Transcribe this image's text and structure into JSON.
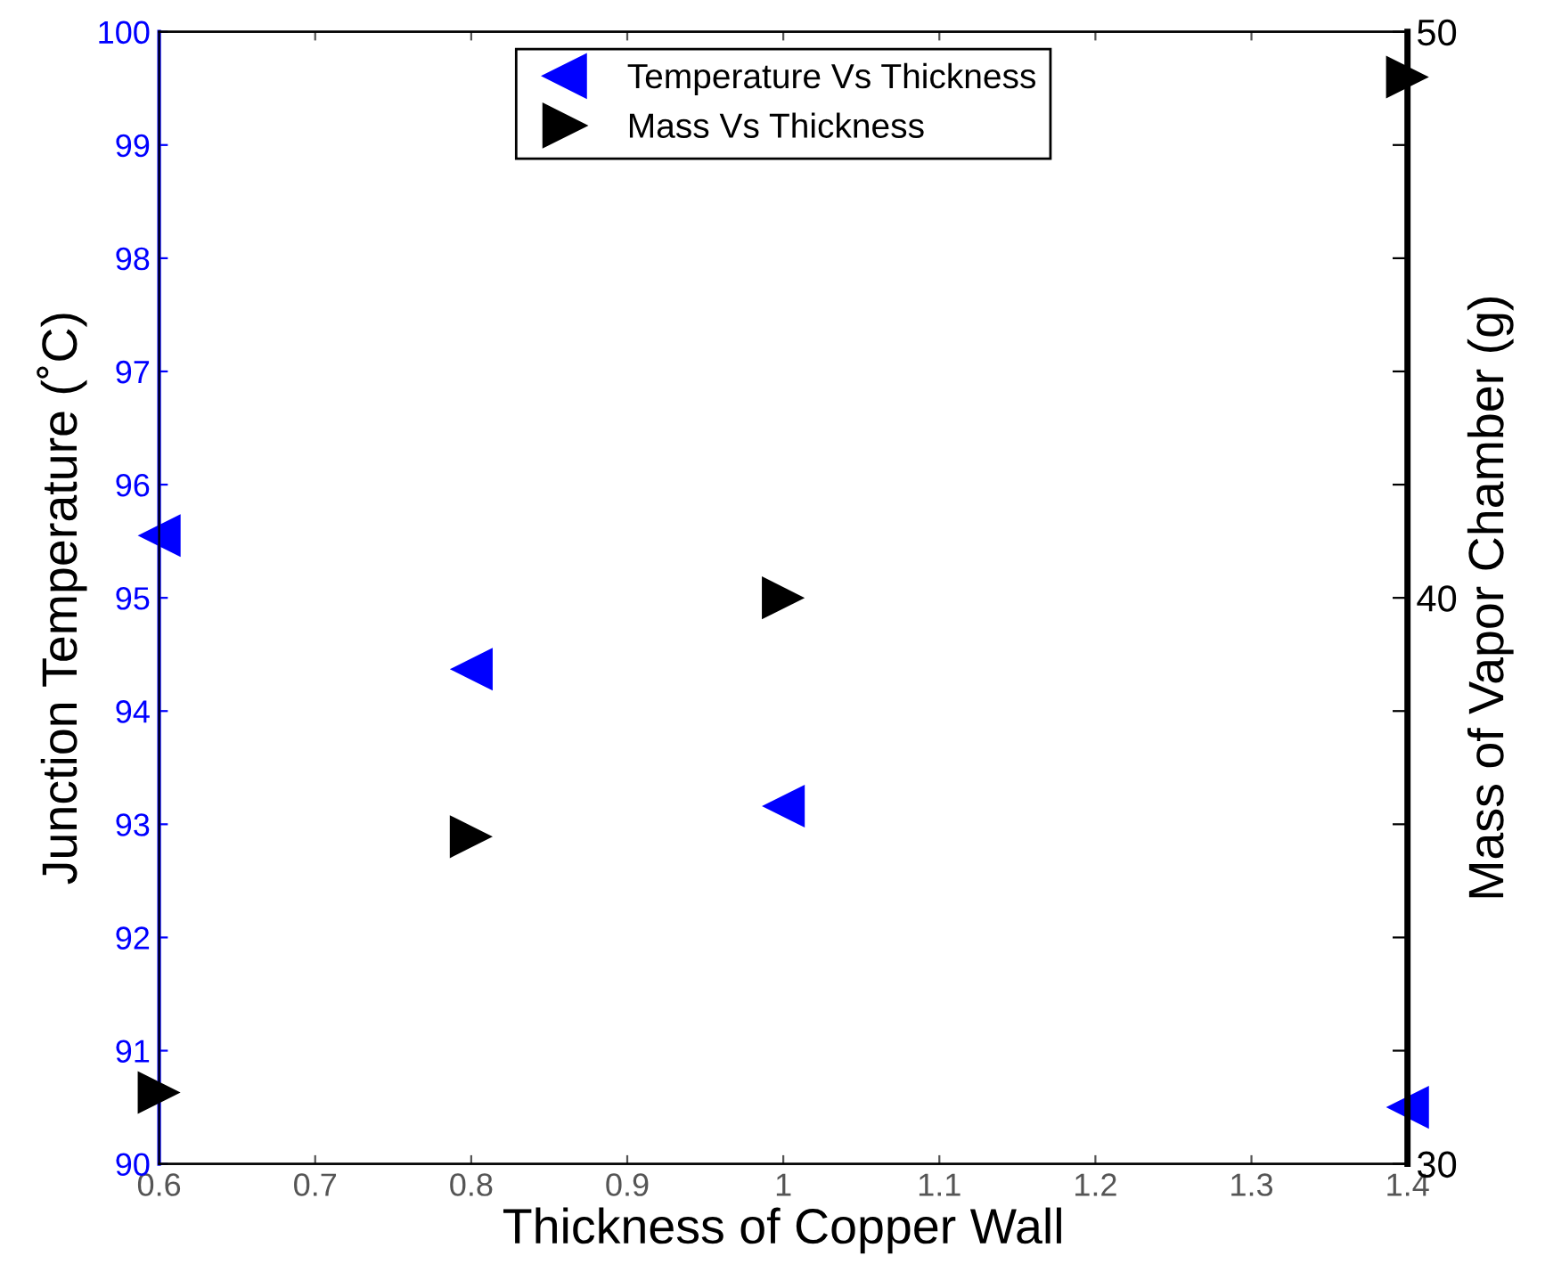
{
  "chart_data": {
    "type": "scatter",
    "xlabel": "Thickness of Copper Wall",
    "ylabel": "Junction Temperature (˚C)",
    "y2label": "Mass of Vapor Chamber (g)",
    "x": [
      0.6,
      0.8,
      1.0,
      1.4
    ],
    "series": [
      {
        "name": "Temperature Vs Thickness",
        "color": "#0000ff",
        "values": [
          95.55,
          94.37,
          93.16,
          90.5
        ],
        "axis": "y"
      },
      {
        "name": "Mass Vs Thickness",
        "color": "#000000",
        "values": [
          31.26,
          35.78,
          40.0,
          49.2
        ],
        "axis": "y2"
      }
    ],
    "xlim": [
      0.6,
      1.4
    ],
    "xticks": [
      0.6,
      0.7,
      0.8,
      0.9,
      1,
      1.1,
      1.2,
      1.3,
      1.4
    ],
    "ylim": [
      90,
      100
    ],
    "yticks": [
      90,
      91,
      92,
      93,
      94,
      95,
      96,
      97,
      98,
      99,
      100
    ],
    "y2lim": [
      30,
      50
    ],
    "y2ticks": [
      30,
      {
        "value": 32,
        "label": null
      },
      {
        "value": 34,
        "label": null
      },
      {
        "value": 36,
        "label": null
      },
      {
        "value": 38,
        "label": null
      },
      40,
      {
        "value": 42,
        "label": null
      },
      {
        "value": 44,
        "label": null
      },
      {
        "value": 46,
        "label": null
      },
      {
        "value": 48,
        "label": null
      },
      50
    ],
    "marker": "triangle",
    "grid": false,
    "legend": "top"
  }
}
